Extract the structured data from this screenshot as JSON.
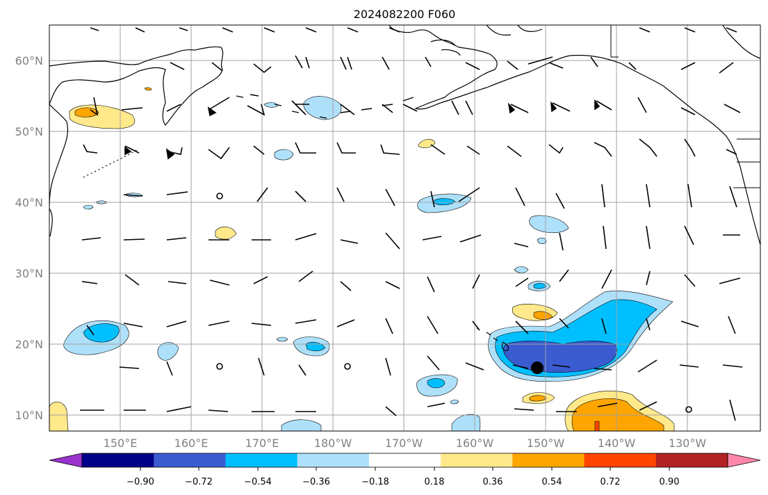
{
  "title": "2024082200 F060",
  "map": {
    "lat_labels": [
      "60°N",
      "50°N",
      "40°N",
      "30°N",
      "20°N",
      "10°N"
    ],
    "lon_labels": [
      "150°E",
      "160°E",
      "170°E",
      "180°W",
      "170°W",
      "160°W",
      "150°W",
      "140°W",
      "130°W"
    ],
    "grid_color": "#a0a0a0",
    "coast_color": "#000000"
  },
  "colorbar": {
    "labels": [
      "−0.90",
      "−0.72",
      "−0.54",
      "−0.36",
      "−0.18",
      "0.18",
      "0.36",
      "0.54",
      "0.72",
      "0.90"
    ],
    "colors": [
      "#9933cc",
      "#000088",
      "#3b5bd0",
      "#00bfff",
      "#aee0fa",
      "#ffffff",
      "#ffe98a",
      "#ffa500",
      "#ff4500",
      "#b22222",
      "#ff88aa"
    ]
  },
  "marker": {
    "label": "storm-center",
    "lat": 16.8,
    "lon": -151.7
  }
}
